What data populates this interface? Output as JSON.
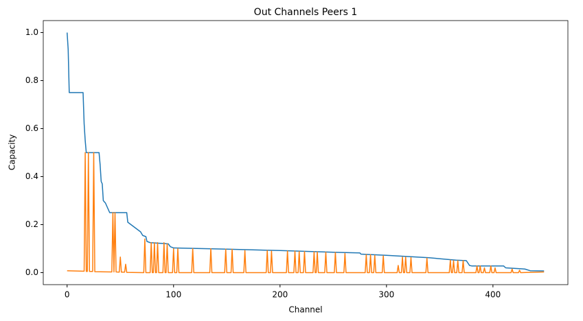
{
  "chart_data": {
    "type": "line",
    "title": "Out Channels Peers 1",
    "x_label": "Channel",
    "y_label": "Capacity",
    "xlim": [
      -22.4,
      470.4
    ],
    "ylim": [
      -0.05,
      1.05
    ],
    "xticks": [
      0,
      100,
      200,
      300,
      400
    ],
    "yticks": [
      {
        "value": 0,
        "label": "0.0"
      },
      0.2,
      0.4,
      0.6,
      0.8,
      {
        "value": 1,
        "label": "1.0"
      }
    ],
    "series": [
      {
        "color": "#1f77b4",
        "x": [
          0,
          1,
          2,
          15,
          16,
          17,
          18,
          30,
          31,
          32,
          33,
          34,
          36,
          38,
          40,
          56,
          57,
          60,
          63,
          66,
          69,
          71,
          74,
          75,
          78,
          95,
          97,
          100,
          150,
          200,
          250,
          275,
          276,
          300,
          340,
          365,
          375,
          378,
          380,
          410,
          412,
          430,
          435,
          448
        ],
        "values": [
          1.0,
          0.93,
          0.75,
          0.75,
          0.62,
          0.55,
          0.5,
          0.5,
          0.45,
          0.38,
          0.37,
          0.3,
          0.29,
          0.27,
          0.25,
          0.25,
          0.21,
          0.2,
          0.19,
          0.18,
          0.17,
          0.155,
          0.15,
          0.13,
          0.125,
          0.12,
          0.108,
          0.103,
          0.098,
          0.092,
          0.085,
          0.082,
          0.077,
          0.072,
          0.062,
          0.052,
          0.05,
          0.03,
          0.028,
          0.028,
          0.02,
          0.015,
          0.008,
          0.007
        ]
      },
      {
        "color": "#ff7f0e",
        "x": [
          0,
          15,
          16,
          17,
          18,
          19,
          20,
          21,
          24,
          25,
          26,
          42,
          43,
          44,
          45,
          46,
          49,
          50,
          51,
          54,
          55,
          56,
          72,
          73,
          74,
          78,
          79,
          80,
          81,
          82,
          83,
          84,
          85,
          86,
          90,
          91,
          92,
          93,
          94,
          95,
          99,
          100,
          101,
          103,
          104,
          105,
          117,
          118,
          119,
          134,
          135,
          136,
          148,
          149,
          150,
          154,
          155,
          156,
          166,
          167,
          168,
          187,
          188,
          189,
          191,
          192,
          193,
          206,
          207,
          208,
          213,
          214,
          215,
          217,
          218,
          219,
          222,
          223,
          224,
          231,
          232,
          233,
          234,
          235,
          236,
          242,
          243,
          244,
          251,
          252,
          253,
          260,
          261,
          262,
          280,
          281,
          282,
          284,
          285,
          286,
          288,
          289,
          290,
          296,
          297,
          298,
          310,
          311,
          312,
          314,
          315,
          316,
          317,
          318,
          319,
          322,
          323,
          324,
          337,
          338,
          339,
          359,
          360,
          361,
          362,
          363,
          364,
          366,
          367,
          368,
          371,
          372,
          373,
          384,
          385,
          386,
          387,
          388,
          389,
          391,
          392,
          393,
          397,
          398,
          399,
          401,
          402,
          403,
          417,
          418,
          419,
          424,
          425,
          426,
          448
        ],
        "values": [
          0.008,
          0.006,
          0.006,
          0.5,
          0.005,
          0.005,
          0.5,
          0.005,
          0.005,
          0.5,
          0.004,
          0.003,
          0.25,
          0.003,
          0.25,
          0.003,
          0.002,
          0.065,
          0.002,
          0.002,
          0.035,
          0.001,
          0,
          0.14,
          0,
          0,
          0.125,
          0,
          0,
          0.125,
          0,
          0,
          0.125,
          0,
          0,
          0.125,
          0,
          0,
          0.12,
          0,
          0,
          0.1,
          0,
          0,
          0.1,
          0,
          0,
          0.1,
          0,
          0,
          0.1,
          0,
          0,
          0.098,
          0,
          0,
          0.098,
          0,
          0,
          0.092,
          0,
          0,
          0.092,
          0,
          0,
          0.09,
          0,
          0,
          0.09,
          0,
          0,
          0.09,
          0,
          0,
          0.088,
          0,
          0,
          0.088,
          0,
          0,
          0.087,
          0,
          0,
          0.086,
          0,
          0,
          0.085,
          0,
          0,
          0.084,
          0,
          0,
          0.08,
          0,
          0,
          0.075,
          0,
          0,
          0.075,
          0,
          0,
          0.072,
          0,
          0,
          0.07,
          0,
          0,
          0.03,
          0,
          0,
          0.065,
          0,
          0,
          0.065,
          0,
          0,
          0.063,
          0,
          0,
          0.06,
          0,
          0,
          0.052,
          0,
          0,
          0.05,
          0,
          0,
          0.05,
          0,
          0,
          0.05,
          0,
          0,
          0.028,
          0,
          0,
          0.028,
          0,
          0,
          0.02,
          0,
          0,
          0.028,
          0,
          0,
          0.02,
          0,
          0,
          0.015,
          0,
          0,
          0.01,
          0,
          0.003
        ]
      }
    ]
  }
}
